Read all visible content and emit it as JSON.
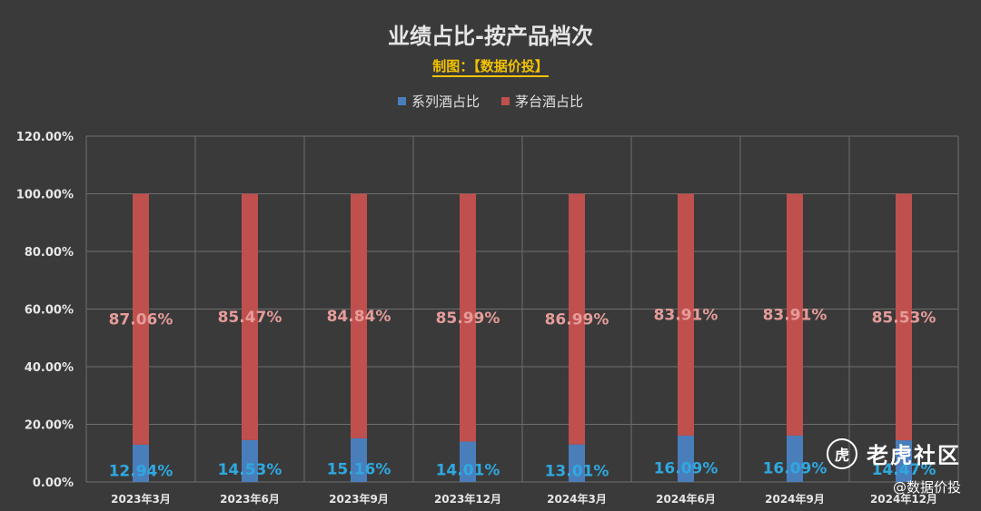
{
  "chart_data": {
    "type": "bar",
    "stacked": true,
    "title": "业绩占比-按产品档次",
    "subtitle": "制图：【数据价投】",
    "categories": [
      "2023年3月",
      "2023年6月",
      "2023年9月",
      "2023年12月",
      "2024年3月",
      "2024年6月",
      "2024年9月",
      "2024年12月"
    ],
    "series": [
      {
        "name": "系列酒占比",
        "color": "#4a7ebb",
        "label_color": "#2fa8e0",
        "values": [
          12.94,
          14.53,
          15.16,
          14.01,
          13.01,
          16.09,
          16.09,
          14.47
        ],
        "labels": [
          "12.94%",
          "14.53%",
          "15.16%",
          "14.01%",
          "13.01%",
          "16.09%",
          "16.09%",
          "14.47%"
        ]
      },
      {
        "name": "茅台酒占比",
        "color": "#c0504d",
        "label_color": "#e59c9a",
        "values": [
          87.06,
          85.47,
          84.84,
          85.99,
          86.99,
          83.91,
          83.91,
          85.53
        ],
        "labels": [
          "87.06%",
          "85.47%",
          "84.84%",
          "85.99%",
          "86.99%",
          "83.91%",
          "83.91%",
          "85.53%"
        ]
      }
    ],
    "ylim": [
      0,
      120
    ],
    "yticks": [
      0,
      20,
      40,
      60,
      80,
      100,
      120
    ],
    "ytick_labels": [
      "0.00%",
      "20.00%",
      "40.00%",
      "60.00%",
      "80.00%",
      "100.00%",
      "120.00%"
    ],
    "grid": true,
    "legend_position": "top-center"
  },
  "watermark": {
    "logo_char": "虎",
    "name": "老虎社区",
    "handle": "@数据价投"
  }
}
